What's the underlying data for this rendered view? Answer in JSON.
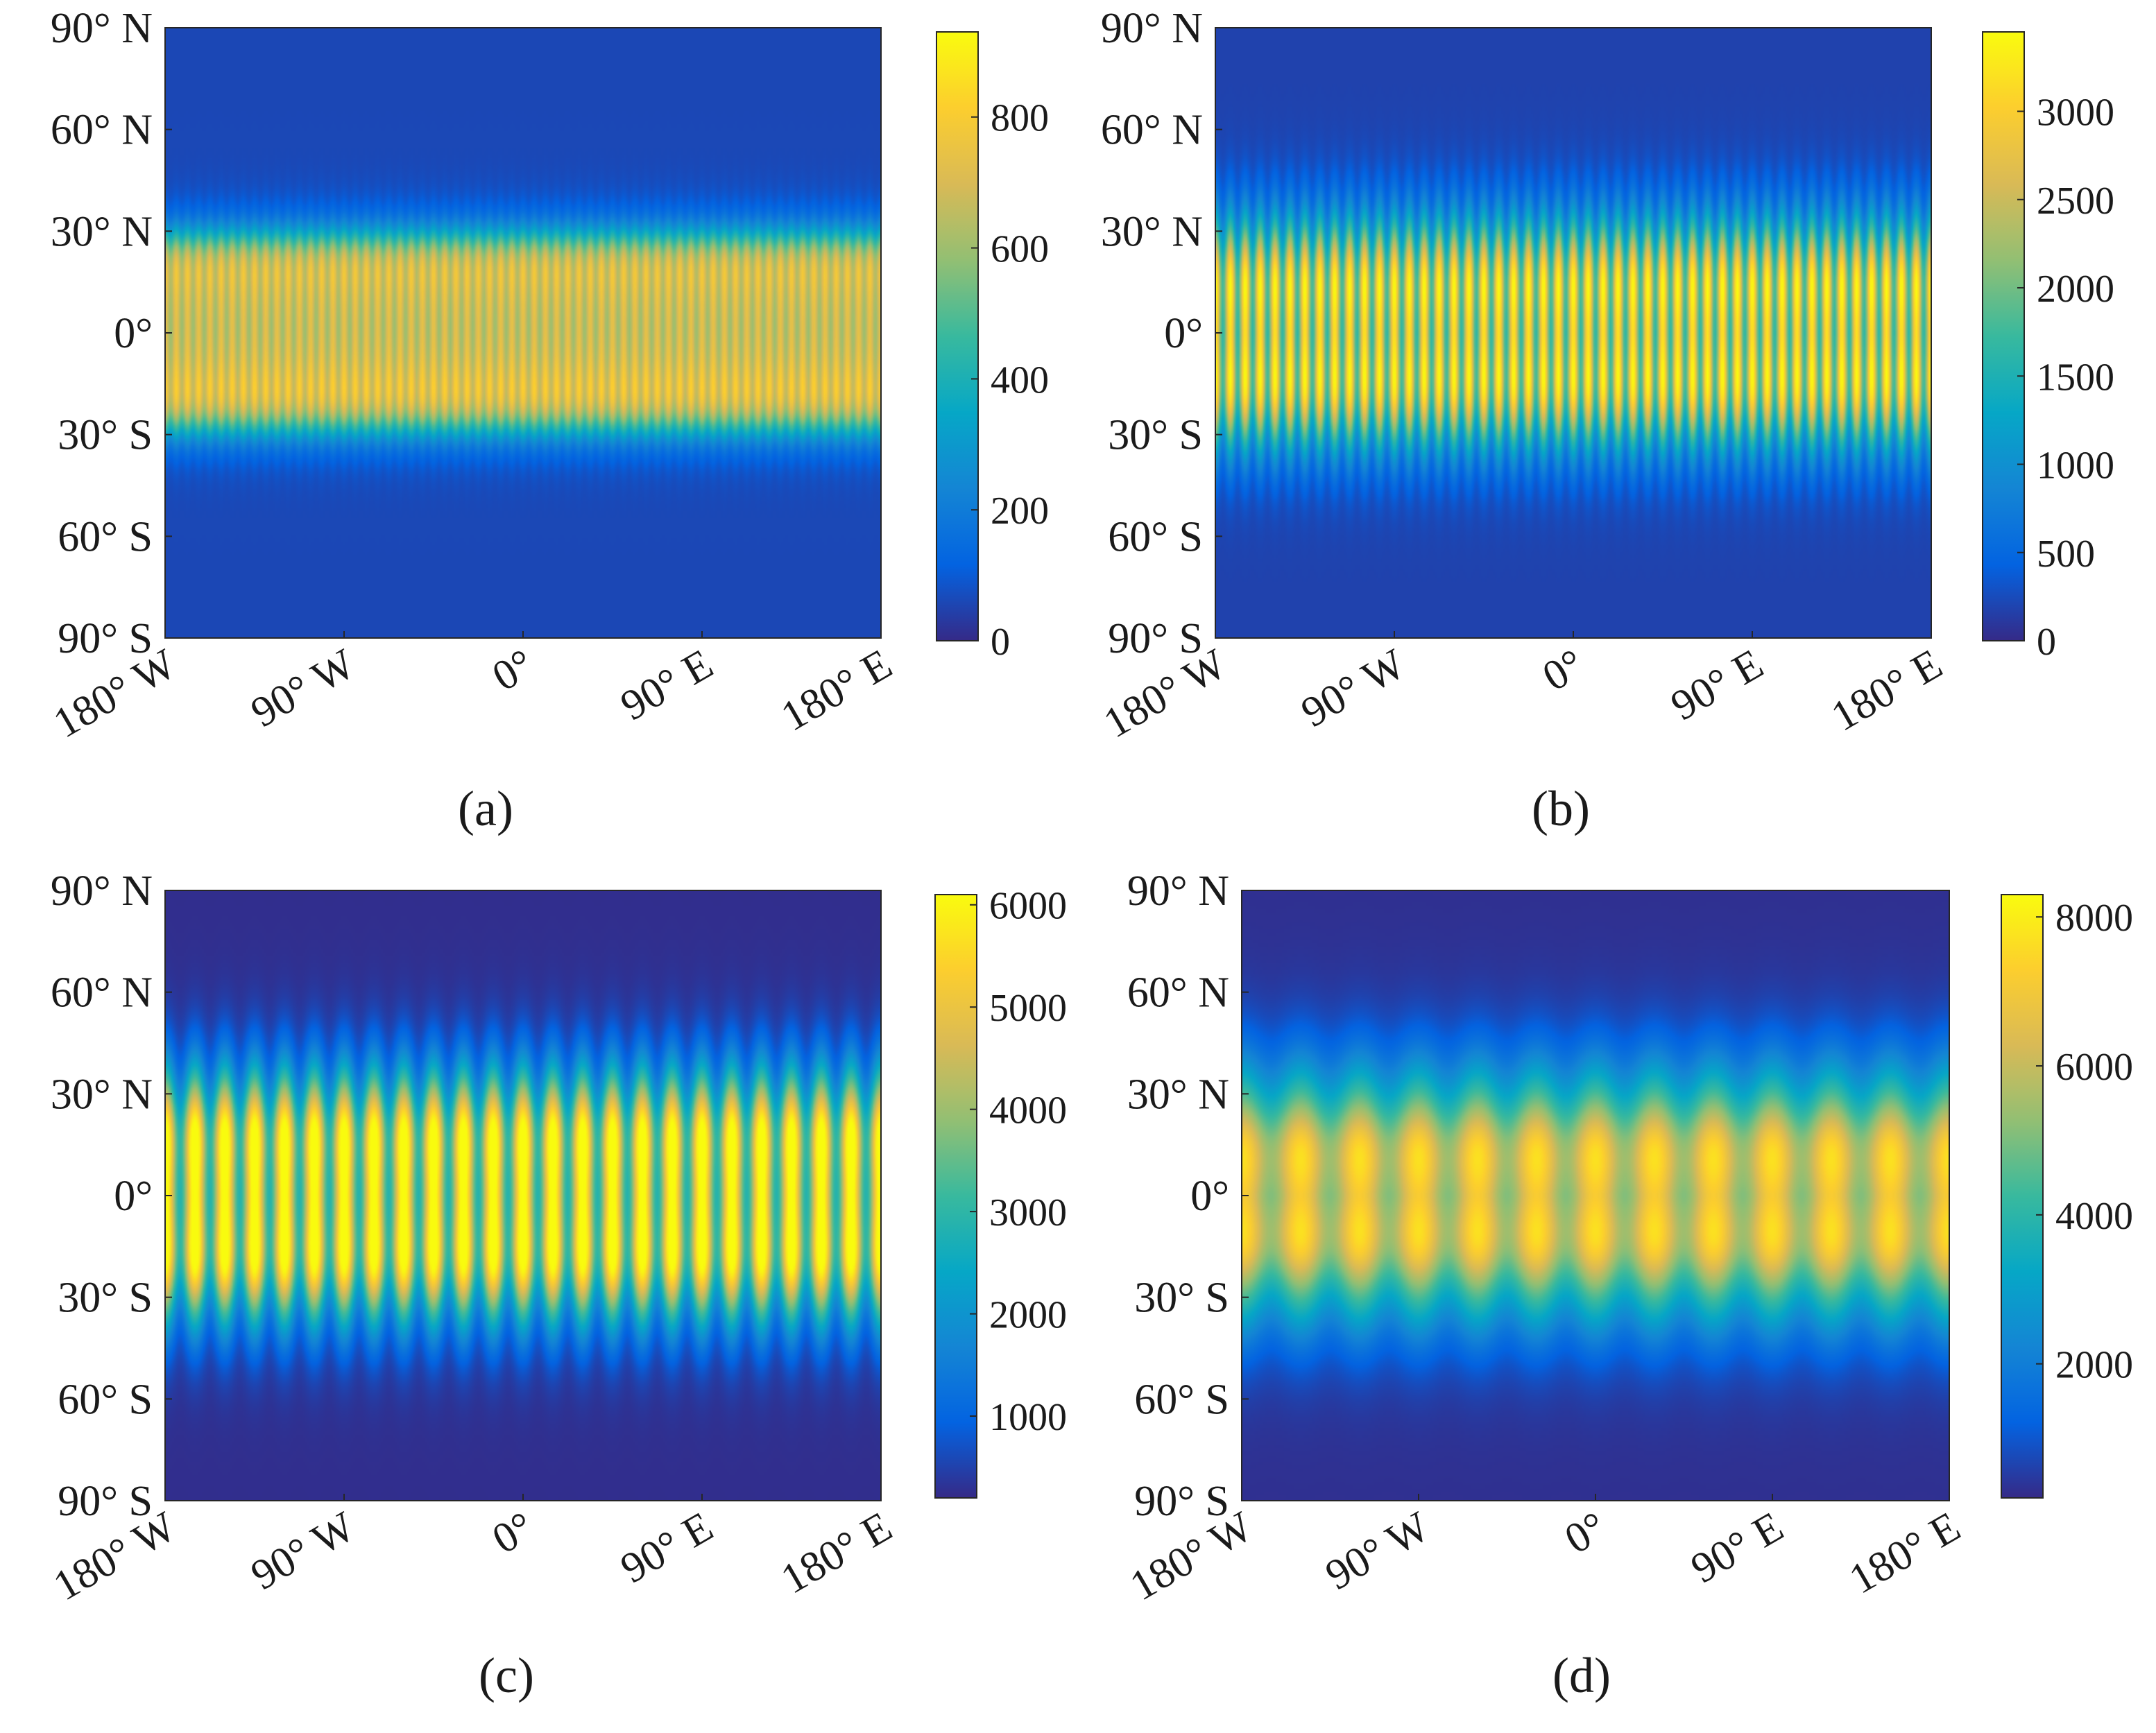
{
  "colormap": "parula",
  "colors": {
    "axis": "#262626",
    "text": "#1a1a1a",
    "colormap_stops": [
      "#352a87",
      "#0363e1",
      "#1485d4",
      "#06a7c6",
      "#38b99e",
      "#92bf73",
      "#d9ba56",
      "#fcce2e",
      "#f9fb0e"
    ]
  },
  "chart_data": [
    {
      "id": "a",
      "type": "heatmap",
      "caption": "(a)",
      "x_ticks": [
        -180,
        -90,
        0,
        90,
        180
      ],
      "x_tick_labels": [
        "180° W",
        "90° W",
        "0°",
        "90° E",
        "180° E"
      ],
      "y_ticks": [
        90,
        60,
        30,
        0,
        -30,
        -60,
        -90
      ],
      "y_tick_labels": [
        "90° N",
        "60° N",
        "30° N",
        "0°",
        "30° S",
        "60° S",
        "90° S"
      ],
      "xlim": [
        -180,
        180
      ],
      "ylim": [
        -90,
        90
      ],
      "colorbar": {
        "min": 0,
        "max": 930,
        "ticks": [
          0,
          200,
          400,
          600,
          800
        ],
        "tick_labels": [
          "0",
          "200",
          "400",
          "600",
          "800"
        ]
      },
      "field": {
        "band_lat": 28,
        "band_edge_width": 4,
        "peak": 800,
        "background": 60,
        "stripes": 64,
        "stripe_amplitude": 0.12,
        "north_max_lat": 25,
        "south_max_lat": -22,
        "stripe_lat_scale": 60
      }
    },
    {
      "id": "b",
      "type": "heatmap",
      "caption": "(b)",
      "x_ticks": [
        -180,
        -90,
        0,
        90,
        180
      ],
      "x_tick_labels": [
        "180° W",
        "90° W",
        "0°",
        "90° E",
        "180° E"
      ],
      "y_ticks": [
        90,
        60,
        30,
        0,
        -30,
        -60,
        -90
      ],
      "y_tick_labels": [
        "90° N",
        "60° N",
        "30° N",
        "0°",
        "30° S",
        "60° S",
        "90° S"
      ],
      "xlim": [
        -180,
        180
      ],
      "ylim": [
        -90,
        90
      ],
      "colorbar": {
        "min": 0,
        "max": 3450,
        "ticks": [
          0,
          500,
          1000,
          1500,
          2000,
          2500,
          3000
        ],
        "tick_labels": [
          "0",
          "500",
          "1000",
          "1500",
          "2000",
          "2500",
          "3000"
        ]
      },
      "field": {
        "band_lat": 30,
        "band_edge_width": 7,
        "peak": 2900,
        "background": 180,
        "stripes": 48,
        "stripe_amplitude": 0.35,
        "north_max_lat": 18,
        "south_max_lat": -18,
        "stripe_lat_scale": 34
      }
    },
    {
      "id": "c",
      "type": "heatmap",
      "caption": "(c)",
      "x_ticks": [
        -180,
        -90,
        0,
        90,
        180
      ],
      "x_tick_labels": [
        "180° W",
        "90° W",
        "0°",
        "90° E",
        "180° E"
      ],
      "y_ticks": [
        90,
        60,
        30,
        0,
        -30,
        -60,
        -90
      ],
      "y_tick_labels": [
        "90° N",
        "60° N",
        "30° N",
        "0°",
        "30° S",
        "60° S",
        "90° S"
      ],
      "xlim": [
        -180,
        180
      ],
      "ylim": [
        -90,
        90
      ],
      "colorbar": {
        "min": 200,
        "max": 6100,
        "ticks": [
          1000,
          2000,
          3000,
          4000,
          5000,
          6000
        ],
        "tick_labels": [
          "1000",
          "2000",
          "3000",
          "4000",
          "5000",
          "6000"
        ]
      },
      "field": {
        "band_lat": 32,
        "band_edge_width": 8,
        "peak": 5600,
        "background": 250,
        "stripes": 24,
        "stripe_amplitude": 0.4,
        "north_max_lat": 20,
        "south_max_lat": -20,
        "stripe_lat_scale": 40
      }
    },
    {
      "id": "d",
      "type": "heatmap",
      "caption": "(d)",
      "x_ticks": [
        -180,
        -90,
        0,
        90,
        180
      ],
      "x_tick_labels": [
        "180° W",
        "90° W",
        "0°",
        "90° E",
        "180° E"
      ],
      "y_ticks": [
        90,
        60,
        30,
        0,
        -30,
        -60,
        -90
      ],
      "y_tick_labels": [
        "90° N",
        "60° N",
        "30° N",
        "0°",
        "30° S",
        "60° S",
        "90° S"
      ],
      "xlim": [
        -180,
        180
      ],
      "ylim": [
        -90,
        90
      ],
      "colorbar": {
        "min": 200,
        "max": 8300,
        "ticks": [
          2000,
          4000,
          6000,
          8000
        ],
        "tick_labels": [
          "2000",
          "4000",
          "6000",
          "8000"
        ]
      },
      "field": {
        "band_lat": 33,
        "band_edge_width": 9,
        "peak": 7200,
        "background": 300,
        "stripes": 12,
        "stripe_amplitude": 0.18,
        "north_max_lat": 14,
        "south_max_lat": -14,
        "stripe_lat_scale": 55
      }
    }
  ]
}
